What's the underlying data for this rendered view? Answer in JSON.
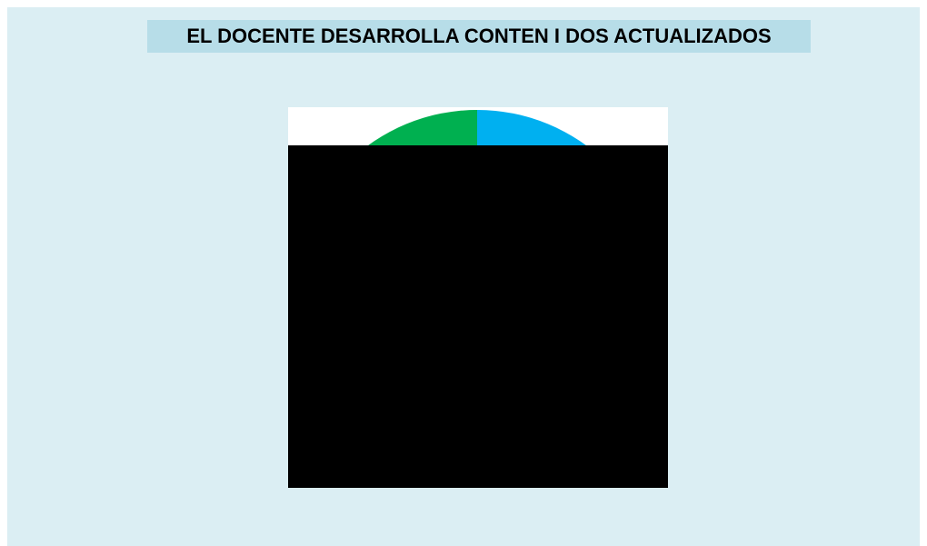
{
  "chart_data": {
    "type": "pie",
    "title": "EL DOCENTE DESARROLLA CONTEN I DOS ACTUALIZADOS"
  }
}
